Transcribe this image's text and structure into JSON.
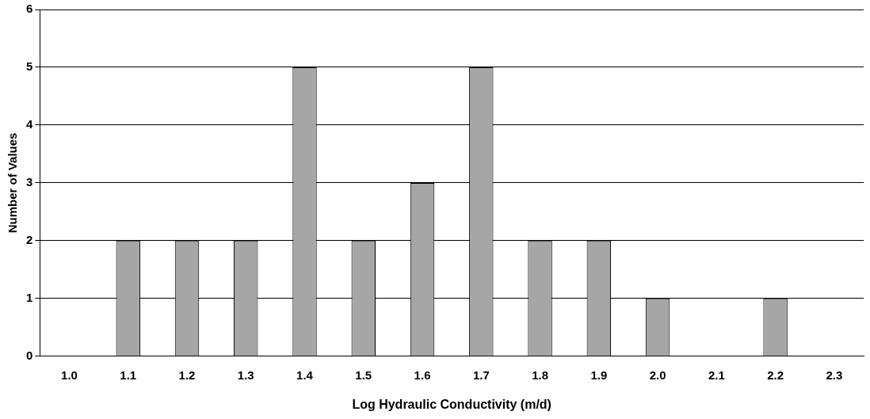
{
  "chart_data": {
    "type": "bar",
    "xlabel": "Log Hydraulic Conductivity (m/d)",
    "ylabel": "Number of Values",
    "categories": [
      "1.0",
      "1.1",
      "1.2",
      "1.3",
      "1.4",
      "1.5",
      "1.6",
      "1.7",
      "1.8",
      "1.9",
      "2.0",
      "2.1",
      "2.2",
      "2.3"
    ],
    "values": [
      0,
      2,
      2,
      2,
      5,
      2,
      3,
      5,
      2,
      2,
      1,
      0,
      1,
      0
    ],
    "color": "#a6a6a6",
    "ylim": [
      0,
      6
    ],
    "yticks": [
      0,
      1,
      2,
      3,
      4,
      5,
      6
    ],
    "grid": "y",
    "legend": false
  }
}
